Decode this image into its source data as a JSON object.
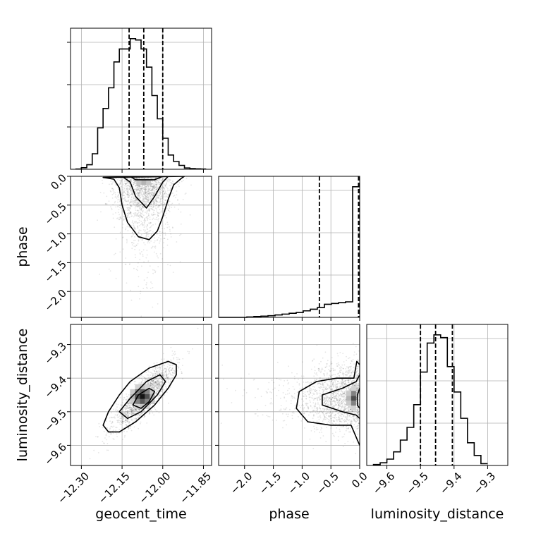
{
  "chart_data": {
    "type": "corner",
    "parameters": [
      {
        "name": "geocent_time",
        "label": "geocent_time",
        "range": [
          -12.34,
          -11.82
        ],
        "ticks": [
          -12.3,
          -12.15,
          -12.0,
          -11.85
        ],
        "tick_labels": [
          "−12.30",
          "−12.15",
          "−12.00",
          "−11.85"
        ],
        "quantiles": [
          -12.124,
          -12.07,
          -12.0
        ],
        "histogram": {
          "bin_edges": [
            -12.32,
            -12.3,
            -12.28,
            -12.26,
            -12.24,
            -12.22,
            -12.2,
            -12.18,
            -12.16,
            -12.14,
            -12.12,
            -12.1,
            -12.08,
            -12.06,
            -12.04,
            -12.02,
            -12.0,
            -11.98,
            -11.96,
            -11.94,
            -11.92,
            -11.9,
            -11.88,
            -11.86,
            -11.84
          ],
          "counts": [
            0.2,
            1.2,
            3.5,
            12.0,
            32.0,
            47.0,
            63.0,
            83.0,
            93.0,
            93.0,
            101.0,
            100.0,
            93.0,
            79.0,
            57.0,
            39.0,
            24.0,
            11.0,
            6.0,
            3.0,
            1.0,
            0.5,
            0.3,
            0.2
          ]
        }
      },
      {
        "name": "phase",
        "label": "phase",
        "range": [
          -2.45,
          0.0
        ],
        "ticks": [
          -2.0,
          -1.5,
          -1.0,
          -0.5,
          0.0
        ],
        "tick_labels": [
          "−2.0",
          "−1.5",
          "−1.0",
          "−0.5",
          "0.0"
        ],
        "quantiles": [
          -0.7,
          -0.02,
          0.0
        ],
        "histogram": {
          "bin_edges": [
            -2.45,
            -2.3275,
            -2.205,
            -2.0825,
            -1.96,
            -1.8375,
            -1.715,
            -1.5925,
            -1.47,
            -1.3475,
            -1.225,
            -1.1025,
            -0.98,
            -0.8575,
            -0.735,
            -0.6125,
            -0.49,
            -0.3675,
            -0.245,
            -0.1225,
            0.0
          ],
          "counts": [
            0,
            0,
            0,
            0,
            0.5,
            1,
            1.5,
            2,
            3,
            4,
            5,
            6,
            8,
            10,
            12,
            16,
            17,
            18,
            19,
            160
          ]
        }
      },
      {
        "name": "luminosity_distance",
        "label": "luminosity_distance",
        "range": [
          -9.66,
          -9.24
        ],
        "ticks": [
          -9.6,
          -9.5,
          -9.4,
          -9.3
        ],
        "tick_labels": [
          "−9.6",
          "−9.5",
          "−9.4",
          "−9.3"
        ],
        "quantiles": [
          -9.5,
          -9.455,
          -9.405
        ],
        "histogram": {
          "bin_edges": [
            -9.64,
            -9.62,
            -9.6,
            -9.58,
            -9.56,
            -9.54,
            -9.52,
            -9.5,
            -9.48,
            -9.46,
            -9.44,
            -9.42,
            -9.4,
            -9.38,
            -9.36,
            -9.34,
            -9.32,
            -9.3
          ],
          "counts": [
            1,
            3,
            7,
            15,
            28,
            42,
            67,
            103,
            135,
            144,
            141,
            109,
            81,
            52,
            25,
            11,
            2
          ]
        }
      }
    ],
    "pairs": [
      {
        "x": "geocent_time",
        "y": "phase",
        "density_peak": [
          -12.07,
          -0.02
        ],
        "contours": [
          [
            [
              -12.22,
              -0.02
            ],
            [
              -12.18,
              -0.05
            ],
            [
              -12.16,
              -0.2
            ],
            [
              -12.15,
              -0.5
            ],
            [
              -12.13,
              -0.8
            ],
            [
              -12.09,
              -1.05
            ],
            [
              -12.05,
              -1.1
            ],
            [
              -12.02,
              -0.95
            ],
            [
              -12.0,
              -0.7
            ],
            [
              -11.98,
              -0.4
            ],
            [
              -11.96,
              -0.15
            ],
            [
              -11.93,
              -0.03
            ],
            [
              -11.92,
              0.0
            ]
          ],
          [
            [
              -12.15,
              0.0
            ],
            [
              -12.12,
              -0.1
            ],
            [
              -12.1,
              -0.35
            ],
            [
              -12.06,
              -0.55
            ],
            [
              -12.03,
              -0.35
            ],
            [
              -12.0,
              -0.1
            ],
            [
              -11.98,
              0.0
            ]
          ],
          [
            [
              -12.12,
              0.0
            ],
            [
              -12.1,
              -0.06
            ],
            [
              -12.03,
              -0.06
            ],
            [
              -12.0,
              0.0
            ]
          ]
        ]
      },
      {
        "x": "geocent_time",
        "y": "luminosity_distance",
        "density_peak": [
          -12.075,
          -9.455
        ],
        "contours": [
          [
            [
              -12.22,
              -9.54
            ],
            [
              -12.2,
              -9.5
            ],
            [
              -12.16,
              -9.45
            ],
            [
              -12.12,
              -9.41
            ],
            [
              -12.05,
              -9.37
            ],
            [
              -11.98,
              -9.35
            ],
            [
              -11.95,
              -9.36
            ],
            [
              -11.95,
              -9.39
            ],
            [
              -11.98,
              -9.43
            ],
            [
              -12.03,
              -9.48
            ],
            [
              -12.1,
              -9.53
            ],
            [
              -12.16,
              -9.56
            ],
            [
              -12.2,
              -9.56
            ]
          ],
          [
            [
              -12.16,
              -9.5
            ],
            [
              -12.12,
              -9.46
            ],
            [
              -12.06,
              -9.41
            ],
            [
              -12.01,
              -9.39
            ],
            [
              -11.99,
              -9.41
            ],
            [
              -12.02,
              -9.45
            ],
            [
              -12.08,
              -9.5
            ],
            [
              -12.13,
              -9.52
            ]
          ],
          [
            [
              -12.11,
              -9.48
            ],
            [
              -12.09,
              -9.45
            ],
            [
              -12.05,
              -9.43
            ],
            [
              -12.03,
              -9.44
            ],
            [
              -12.05,
              -9.47
            ],
            [
              -12.08,
              -9.49
            ]
          ]
        ]
      },
      {
        "x": "phase",
        "y": "luminosity_distance",
        "density_peak": [
          -0.02,
          -9.46
        ],
        "contours": [
          [
            [
              0.0,
              -9.36
            ],
            [
              -0.05,
              -9.35
            ],
            [
              -0.1,
              -9.4
            ],
            [
              -0.4,
              -9.4
            ],
            [
              -0.75,
              -9.41
            ],
            [
              -1.05,
              -9.44
            ],
            [
              -1.1,
              -9.49
            ],
            [
              -0.9,
              -9.53
            ],
            [
              -0.5,
              -9.54
            ],
            [
              -0.15,
              -9.54
            ],
            [
              -0.05,
              -9.58
            ],
            [
              0.0,
              -9.6
            ]
          ],
          [
            [
              0.0,
              -9.39
            ],
            [
              -0.06,
              -9.41
            ],
            [
              -0.3,
              -9.43
            ],
            [
              -0.65,
              -9.45
            ],
            [
              -0.65,
              -9.48
            ],
            [
              -0.3,
              -9.5
            ],
            [
              -0.06,
              -9.51
            ],
            [
              0.0,
              -9.52
            ]
          ],
          [
            [
              0.0,
              -9.43
            ],
            [
              -0.04,
              -9.45
            ],
            [
              -0.04,
              -9.48
            ],
            [
              0.0,
              -9.49
            ]
          ]
        ]
      }
    ],
    "grid": true
  }
}
